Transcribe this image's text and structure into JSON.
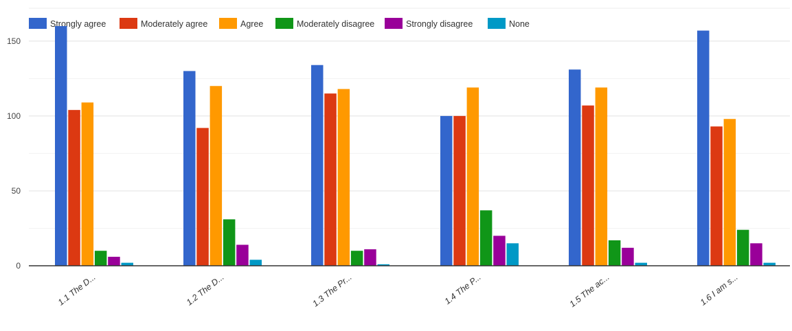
{
  "chart_data": {
    "type": "bar",
    "title": "",
    "xlabel": "",
    "ylabel": "",
    "ylim": [
      0,
      160
    ],
    "yticks": [
      0,
      50,
      100,
      150
    ],
    "grid": true,
    "legend_position": "top-left",
    "categories": [
      "1.1 The D...",
      "1.2 The D...",
      "1.3 The Pr...",
      "1.4 The P...",
      "1.5 The ac...",
      "1.6 I am s..."
    ],
    "series": [
      {
        "name": "Strongly agree",
        "color": "#3366cc",
        "values": [
          160,
          130,
          134,
          100,
          131,
          157
        ]
      },
      {
        "name": "Moderately agree",
        "color": "#dc3912",
        "values": [
          104,
          92,
          115,
          100,
          107,
          93
        ]
      },
      {
        "name": "Agree",
        "color": "#ff9900",
        "values": [
          109,
          120,
          118,
          119,
          119,
          98
        ]
      },
      {
        "name": "Moderately disagree",
        "color": "#109618",
        "values": [
          10,
          31,
          10,
          37,
          17,
          24
        ]
      },
      {
        "name": "Strongly disagree",
        "color": "#990099",
        "values": [
          6,
          14,
          11,
          20,
          12,
          15
        ]
      },
      {
        "name": "None",
        "color": "#0099c6",
        "values": [
          2,
          4,
          1,
          15,
          2,
          2
        ]
      }
    ]
  }
}
